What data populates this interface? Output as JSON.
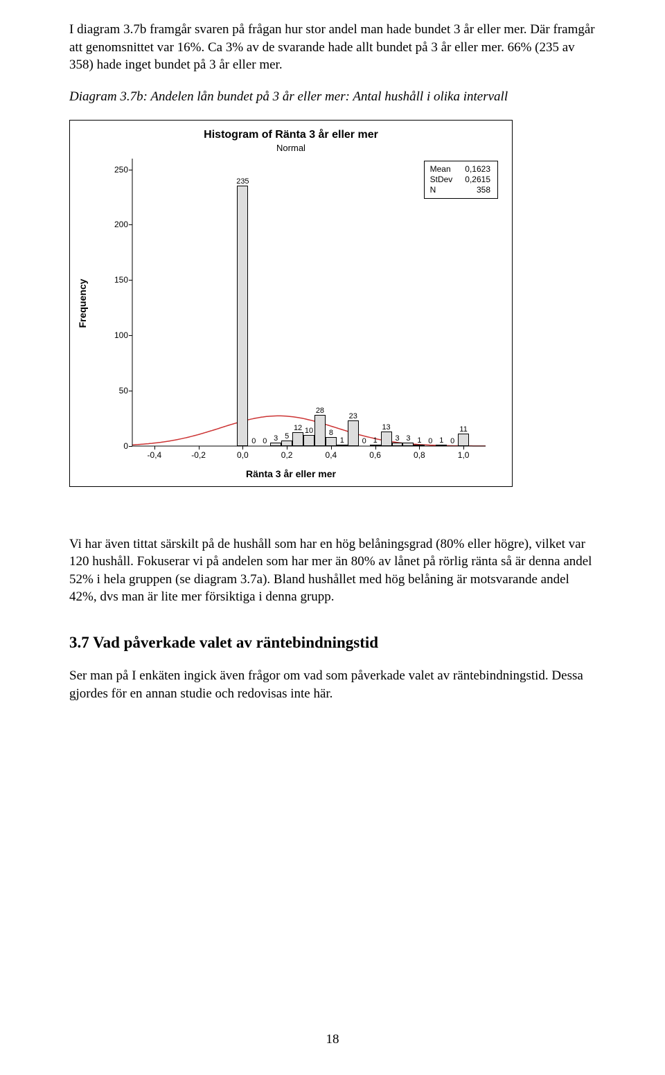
{
  "para1": "I diagram 3.7b framgår svaren på frågan hur stor andel man hade bundet 3 år eller mer. Där framgår att genomsnittet var 16%. Ca 3% av de svarande hade allt bundet på 3 år eller mer. 66% (235 av 358) hade inget bundet på 3 år eller mer.",
  "caption": "Diagram 3.7b: Andelen lån bundet på 3 år eller mer: Antal hushåll i olika intervall",
  "para2": "Vi har även tittat särskilt på de hushåll som har en hög belåningsgrad (80% eller högre), vilket var 120 hushåll. Fokuserar vi på andelen som har mer än 80% av lånet på rörlig ränta så är denna andel 52% i hela gruppen (se diagram 3.7a). Bland hushållet med hög belåning är motsvarande andel 42%, dvs man är lite mer försiktiga i denna grupp.",
  "section_num": "3.7",
  "section_title": "Vad påverkade valet av räntebindningstid",
  "para3": "Ser man på I enkäten ingick även frågor om vad som påverkade valet av räntebindningstid. Dessa gjordes för en annan studie och redovisas inte här.",
  "page_num": "18",
  "chart": {
    "type": "histogram",
    "title": "Histogram of Ränta 3 år eller mer",
    "subtitle": "Normal",
    "stats": {
      "Mean": "0,1623",
      "StDev": "0,2615",
      "N": "358"
    },
    "y_label": "Frequency",
    "x_label": "Ränta 3 år eller mer",
    "y_ticks": [
      0,
      50,
      100,
      150,
      200,
      250
    ],
    "y_max": 260,
    "x_ticks": [
      "-0,4",
      "-0,2",
      "0,0",
      "0,2",
      "0,4",
      "0,6",
      "0,8",
      "1,0"
    ],
    "x_tick_vals": [
      -0.4,
      -0.2,
      0.0,
      0.2,
      0.4,
      0.6,
      0.8,
      1.0
    ],
    "x_min": -0.5,
    "x_max": 1.1,
    "bar_half_width": 0.025,
    "bars": [
      {
        "x": 0.0,
        "v": 235
      },
      {
        "x": 0.05,
        "v": 0
      },
      {
        "x": 0.1,
        "v": 0
      },
      {
        "x": 0.15,
        "v": 3
      },
      {
        "x": 0.2,
        "v": 5
      },
      {
        "x": 0.25,
        "v": 12
      },
      {
        "x": 0.3,
        "v": 10
      },
      {
        "x": 0.35,
        "v": 28
      },
      {
        "x": 0.4,
        "v": 8
      },
      {
        "x": 0.45,
        "v": 1
      },
      {
        "x": 0.5,
        "v": 23
      },
      {
        "x": 0.55,
        "v": 0
      },
      {
        "x": 0.6,
        "v": 1
      },
      {
        "x": 0.65,
        "v": 13
      },
      {
        "x": 0.7,
        "v": 3
      },
      {
        "x": 0.75,
        "v": 3
      },
      {
        "x": 0.8,
        "v": 1
      },
      {
        "x": 0.85,
        "v": 0
      },
      {
        "x": 0.9,
        "v": 1
      },
      {
        "x": 0.95,
        "v": 0
      },
      {
        "x": 1.0,
        "v": 11
      }
    ],
    "bar_color": "#dddddd",
    "bar_border": "#000000",
    "background": "#ffffff",
    "curve_color": "#cc3333",
    "curve_width": 1.5,
    "normal_mean": 0.1623,
    "normal_stdev": 0.2615,
    "normal_n": 358,
    "normal_binwidth": 0.05
  }
}
